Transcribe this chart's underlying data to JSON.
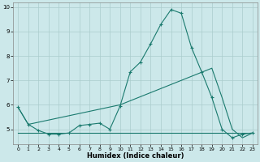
{
  "xlabel": "Humidex (Indice chaleur)",
  "bg_color": "#cce8ea",
  "line_color": "#1a7a6e",
  "xlim": [
    -0.5,
    23.5
  ],
  "ylim": [
    4.4,
    10.2
  ],
  "yticks": [
    5,
    6,
    7,
    8,
    9,
    10
  ],
  "xticks": [
    0,
    1,
    2,
    3,
    4,
    5,
    6,
    7,
    8,
    9,
    10,
    11,
    12,
    13,
    14,
    15,
    16,
    17,
    18,
    19,
    20,
    21,
    22,
    23
  ],
  "line1_x": [
    0,
    1,
    2,
    3,
    4,
    5,
    6,
    7,
    8,
    9,
    10,
    11,
    12,
    13,
    14,
    15,
    16,
    17,
    18,
    19,
    20,
    21,
    22,
    23
  ],
  "line1_y": [
    5.9,
    5.2,
    4.95,
    4.8,
    4.8,
    4.85,
    5.15,
    5.2,
    5.25,
    5.0,
    5.95,
    7.35,
    7.75,
    8.5,
    9.3,
    9.9,
    9.75,
    8.35,
    7.35,
    6.3,
    5.0,
    4.65,
    4.8,
    4.85
  ],
  "line2_x": [
    0,
    1,
    10,
    19,
    20,
    21,
    22,
    23
  ],
  "line2_y": [
    5.9,
    5.2,
    6.0,
    7.5,
    6.3,
    5.0,
    4.65,
    4.85
  ],
  "line3_x": [
    0,
    23
  ],
  "line3_y": [
    4.85,
    4.85
  ],
  "grid_color": "#aacccc",
  "marker": "+"
}
